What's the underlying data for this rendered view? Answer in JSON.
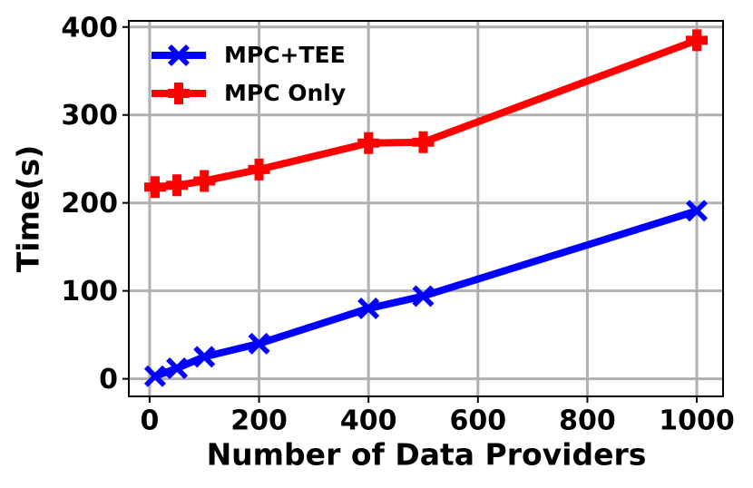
{
  "chart_data": {
    "type": "line",
    "x_label": "Number of Data Providers",
    "y_label": "Time(s)",
    "x": [
      10,
      50,
      100,
      200,
      400,
      500,
      1000
    ],
    "series": [
      {
        "name": "MPC+TEE",
        "color": "#0000ff",
        "marker": "X",
        "values": [
          3,
          12,
          25,
          40,
          80,
          94,
          191
        ]
      },
      {
        "name": "MPC Only",
        "color": "#ff0000",
        "marker": "P",
        "values": [
          218,
          220,
          225,
          238,
          268,
          269,
          385
        ]
      }
    ],
    "xlim": [
      -38,
      1048
    ],
    "xticks": [
      0,
      200,
      400,
      600,
      800,
      1000
    ],
    "ylim": [
      -20,
      407
    ],
    "yticks": [
      0,
      100,
      200,
      300,
      400
    ],
    "grid": true,
    "legend": "upper left"
  }
}
